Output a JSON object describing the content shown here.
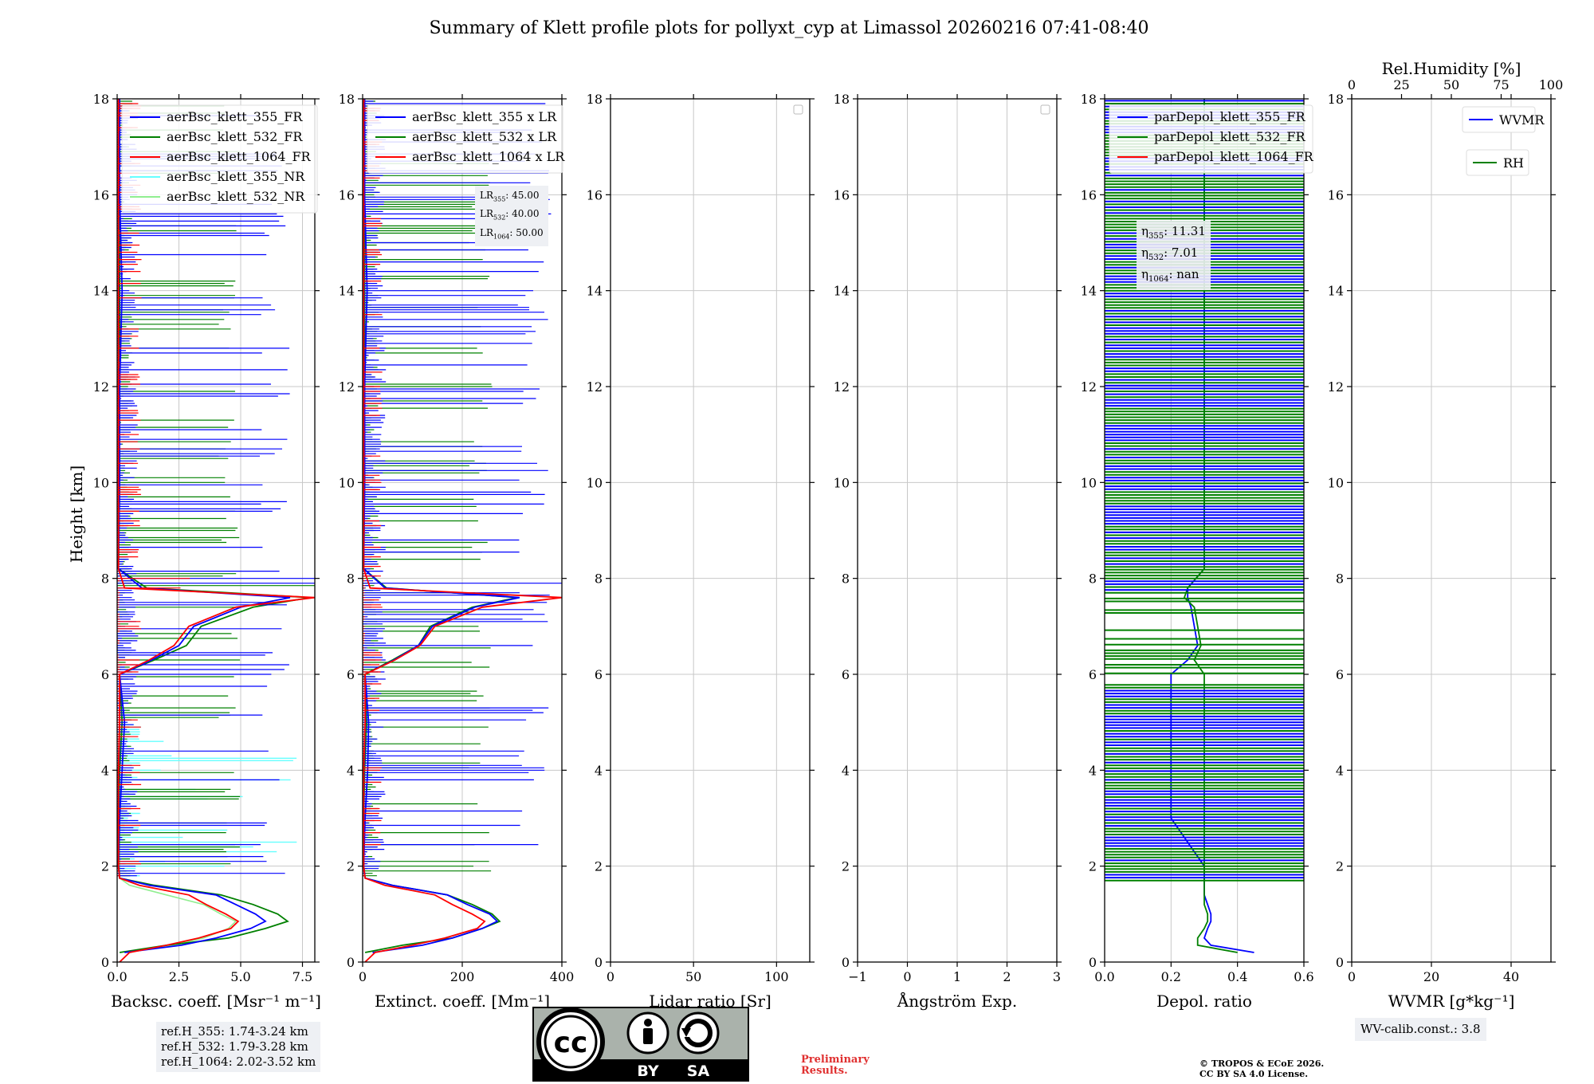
{
  "title": "Summary of Klett profile plots for pollyxt_cyp at Limassol 20260216 07:41-08:40",
  "ylabel": "Height [km]",
  "rh_axis_label": "Rel.Humidity [%]",
  "rh_ticks": [
    "0",
    "25",
    "50",
    "75",
    "100"
  ],
  "y_ticks": [
    "0",
    "2",
    "4",
    "6",
    "8",
    "10",
    "12",
    "14",
    "16",
    "18"
  ],
  "colors": {
    "c355": "#0000ff",
    "c532": "#008000",
    "c1064": "#ff0000",
    "c355nr": "#66ffff",
    "c532nr": "#90ee90"
  },
  "panels": [
    {
      "id": "bsc",
      "xlabel": "Backsc. coeff. [Msr⁻¹ m⁻¹]",
      "xlim": [
        0,
        8
      ],
      "xticks": [
        "0.0",
        "2.5",
        "5.0",
        "7.5"
      ],
      "legend": [
        "aerBsc_klett_355_FR",
        "aerBsc_klett_532_FR",
        "aerBsc_klett_1064_FR",
        "aerBsc_klett_355_NR",
        "aerBsc_klett_532_NR"
      ]
    },
    {
      "id": "ext",
      "xlabel": "Extinct. coeff. [Mm⁻¹]",
      "xlim": [
        0,
        400
      ],
      "xticks": [
        "0",
        "200",
        "400"
      ],
      "legend": [
        "aerBsc_klett_355 x LR",
        "aerBsc_klett_532 x LR",
        "aerBsc_klett_1064 x LR"
      ]
    },
    {
      "id": "lr",
      "xlabel": "Lidar ratio [Sr]",
      "xlim": [
        0,
        120
      ],
      "xticks": [
        "0",
        "50",
        "100"
      ],
      "legend": []
    },
    {
      "id": "ae",
      "xlabel": "Ångström Exp.",
      "xlim": [
        -1,
        3
      ],
      "xticks": [
        "−1",
        "0",
        "1",
        "2",
        "3"
      ],
      "legend": []
    },
    {
      "id": "dep",
      "xlabel": "Depol. ratio",
      "xlim": [
        0,
        0.6
      ],
      "xticks": [
        "0.0",
        "0.2",
        "0.4",
        "0.6"
      ],
      "legend": [
        "parDepol_klett_355_FR",
        "parDepol_klett_532_FR",
        "parDepol_klett_1064_FR"
      ]
    },
    {
      "id": "wv",
      "xlabel": "WVMR [g*kg⁻¹]",
      "xlim": [
        0,
        50
      ],
      "xticks": [
        "0",
        "20",
        "40"
      ],
      "legend": [
        "WVMR",
        "RH"
      ]
    }
  ],
  "lr_box": {
    "l1": "LR",
    "s1": "355",
    "v1": ": 45.00",
    "l2": "LR",
    "s2": "532",
    "v2": ": 40.00",
    "l3": "LR",
    "s3": "1064",
    "v3": ": 50.00"
  },
  "eta_box": {
    "l1": "η",
    "s1": "355",
    "v1": ": 11.31",
    "l2": "η",
    "s2": "532",
    "v2": ": 7.01",
    "l3": "η",
    "s3": "1064",
    "v3": ": nan"
  },
  "ref_box": {
    "line1": "ref.H_355: 1.74-3.24 km",
    "line2": "ref.H_532: 1.79-3.28 km",
    "line3": "ref.H_1064: 2.02-3.52 km"
  },
  "wv_box": {
    "text": "WV-calib.const.: 3.8"
  },
  "license": {
    "cc": "cc",
    "by": "BY",
    "sa": "SA"
  },
  "prelim": {
    "l1": "Preliminary",
    "l2": "Results."
  },
  "copyright": {
    "l1": "© TROPOS & ECoE 2026.",
    "l2": "CC BY SA 4.0 License."
  },
  "chart_data": {
    "type": "line",
    "title": "Summary of Klett profile plots for pollyxt_cyp at Limassol 20260216 07:41-08:40",
    "ylabel": "Height [km]",
    "ylim": [
      0,
      18
    ],
    "profiles": {
      "heights_km": [
        0,
        0.2,
        0.35,
        0.5,
        0.7,
        0.85,
        1.0,
        1.2,
        1.4,
        1.6,
        1.75,
        2.0,
        3.0,
        4.0,
        5.0,
        6.0,
        6.3,
        6.6,
        7.0,
        7.4,
        7.6,
        7.8,
        8.2,
        10,
        12,
        14,
        16,
        18
      ],
      "bsc_355_FR": [
        null,
        0.3,
        2.6,
        4.0,
        5.4,
        6.0,
        5.6,
        4.8,
        4.0,
        1.3,
        0.1,
        0.05,
        0.1,
        0.2,
        0.3,
        0.1,
        1.4,
        2.5,
        3.1,
        5.0,
        7.0,
        1.0,
        0.05,
        0.1,
        0.1,
        0.2,
        0.1,
        0.1
      ],
      "bsc_532_FR": [
        null,
        0.1,
        2.0,
        4.5,
        6.0,
        6.9,
        6.5,
        5.5,
        4.2,
        1.5,
        0.1,
        0.05,
        0.05,
        0.1,
        0.2,
        0.1,
        1.5,
        2.8,
        3.4,
        5.5,
        7.8,
        1.2,
        0.05,
        0.1,
        0.1,
        0.1,
        0.1,
        0.1
      ],
      "bsc_1064_FR": [
        0.1,
        0.5,
        2.0,
        3.3,
        4.6,
        4.9,
        4.4,
        3.6,
        2.9,
        0.9,
        0.1,
        0.05,
        0.05,
        0.05,
        0.1,
        0.1,
        1.3,
        2.3,
        2.9,
        4.8,
        8.0,
        0.3,
        0.05,
        0.05,
        0.05,
        0.05,
        0.05,
        0.05
      ],
      "ext_355": [
        null,
        20,
        120,
        180,
        240,
        270,
        255,
        210,
        170,
        60,
        5,
        2,
        5,
        10,
        12,
        5,
        63,
        112,
        140,
        225,
        315,
        45,
        2,
        4,
        4,
        9,
        4,
        4
      ],
      "ext_532": [
        null,
        5,
        80,
        180,
        240,
        275,
        260,
        220,
        170,
        60,
        5,
        2,
        2,
        4,
        8,
        4,
        60,
        112,
        136,
        220,
        310,
        48,
        2,
        4,
        4,
        4,
        4,
        4
      ],
      "ext_1064": [
        5,
        25,
        100,
        165,
        230,
        245,
        220,
        180,
        145,
        45,
        5,
        2,
        2,
        2,
        5,
        5,
        65,
        115,
        145,
        240,
        400,
        15,
        2,
        2,
        2,
        2,
        2,
        2
      ],
      "depol_355": [
        null,
        0.45,
        0.32,
        0.3,
        0.31,
        0.32,
        0.32,
        0.31,
        0.3,
        0.3,
        0.3,
        0.3,
        0.2,
        0.2,
        0.2,
        0.2,
        0.25,
        0.28,
        0.27,
        0.26,
        0.25,
        0.25,
        0.3,
        0.3,
        0.3,
        0.3,
        0.3,
        0.3
      ],
      "depol_532": [
        null,
        0.4,
        0.28,
        0.28,
        0.3,
        0.31,
        0.31,
        0.3,
        0.3,
        0.3,
        0.3,
        0.3,
        0.3,
        0.3,
        0.3,
        0.3,
        0.27,
        0.29,
        0.28,
        0.27,
        0.24,
        0.25,
        0.3,
        0.3,
        0.3,
        0.3,
        0.3,
        0.3
      ]
    },
    "lidar_ratios": {
      "355": 45.0,
      "532": 40.0,
      "1064": 50.0
    },
    "eta": {
      "355": 11.31,
      "532": 7.01,
      "1064": "nan"
    }
  }
}
